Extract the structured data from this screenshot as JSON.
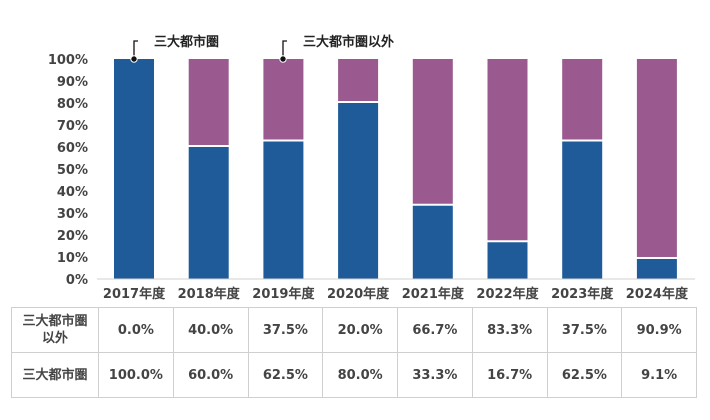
{
  "chart_data": {
    "type": "bar",
    "stacked": true,
    "categories": [
      "2017年度",
      "2018年度",
      "2019年度",
      "2020年度",
      "2021年度",
      "2022年度",
      "2023年度",
      "2024年度"
    ],
    "series": [
      {
        "name": "三大都市圏",
        "color": "#1f5b99",
        "values": [
          100.0,
          60.0,
          62.5,
          80.0,
          33.3,
          16.7,
          62.5,
          9.1
        ]
      },
      {
        "name": "三大都市圏以外",
        "color": "#9b5a8f",
        "values": [
          0.0,
          40.0,
          37.5,
          20.0,
          66.7,
          83.3,
          37.5,
          90.9
        ]
      }
    ],
    "ylim": [
      0,
      100
    ],
    "yticks": [
      "0%",
      "10%",
      "20%",
      "30%",
      "40%",
      "50%",
      "60%",
      "70%",
      "80%",
      "90%",
      "100%"
    ],
    "legend_placement": "top",
    "grid": false
  },
  "table": {
    "rows": [
      {
        "label_line1": "三大都市圏",
        "label_line2": "以外",
        "values": [
          "0.0%",
          "40.0%",
          "37.5%",
          "20.0%",
          "66.7%",
          "83.3%",
          "37.5%",
          "90.9%"
        ]
      },
      {
        "label_line1": "三大都市圏",
        "label_line2": "",
        "values": [
          "100.0%",
          "60.0%",
          "62.5%",
          "80.0%",
          "33.3%",
          "16.7%",
          "62.5%",
          "9.1%"
        ]
      }
    ]
  }
}
